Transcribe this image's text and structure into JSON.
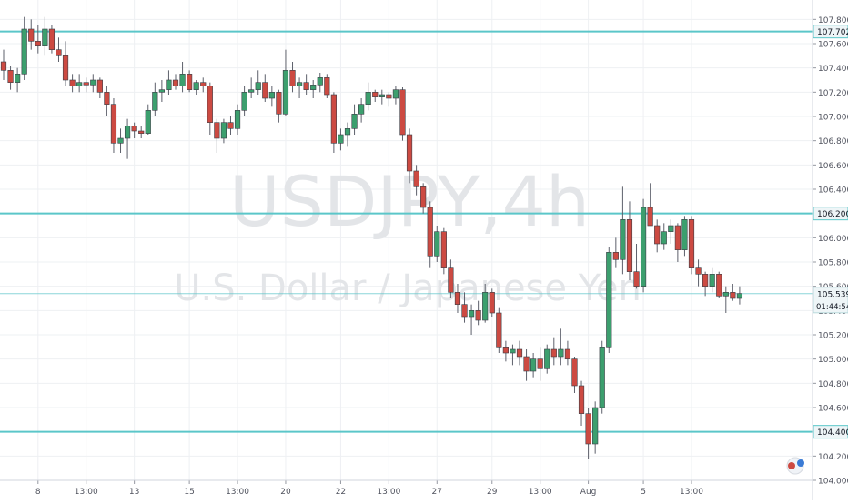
{
  "chart_data": {
    "type": "candlestick",
    "symbol": "USDJPY",
    "interval": "4h",
    "description": "U.S. Dollar / Japanese Yen",
    "colors": {
      "up": "#3c9f6e",
      "down": "#cc4a42",
      "level_line": "#5bc6c9",
      "grid": "#eef0f3",
      "price_tag": "#eef5f7"
    },
    "y_axis": {
      "min": 104.0,
      "max": 107.9,
      "ticks": [
        "104.000",
        "104.200",
        "104.400",
        "104.600",
        "104.800",
        "105.000",
        "105.200",
        "105.400",
        "105.600",
        "105.800",
        "106.000",
        "106.200",
        "106.400",
        "106.600",
        "106.800",
        "107.000",
        "107.200",
        "107.400",
        "107.600",
        "107.800"
      ]
    },
    "x_axis": {
      "ticks": [
        {
          "label": "8",
          "index": 5
        },
        {
          "label": "13:00",
          "index": 12
        },
        {
          "label": "13",
          "index": 19
        },
        {
          "label": "15",
          "index": 27
        },
        {
          "label": "13:00",
          "index": 34
        },
        {
          "label": "20",
          "index": 41
        },
        {
          "label": "22",
          "index": 49
        },
        {
          "label": "13:00",
          "index": 56
        },
        {
          "label": "27",
          "index": 63
        },
        {
          "label": "29",
          "index": 71
        },
        {
          "label": "13:00",
          "index": 78
        },
        {
          "label": "Aug",
          "index": 85
        },
        {
          "label": "5",
          "index": 93
        },
        {
          "label": "13:00",
          "index": 100
        }
      ]
    },
    "horizontal_levels": [
      {
        "value": 107.7,
        "label": "107.702"
      },
      {
        "value": 106.2,
        "label": "106.200"
      },
      {
        "value": 104.4,
        "label": "104.400"
      }
    ],
    "current_price": {
      "value": 105.539,
      "label": "105.539",
      "countdown": "01:44:54"
    },
    "candles": [
      [
        107.45,
        107.55,
        107.3,
        107.38
      ],
      [
        107.38,
        107.42,
        107.22,
        107.28
      ],
      [
        107.28,
        107.4,
        107.2,
        107.35
      ],
      [
        107.35,
        107.82,
        107.3,
        107.72
      ],
      [
        107.72,
        107.8,
        107.55,
        107.62
      ],
      [
        107.62,
        107.75,
        107.52,
        107.58
      ],
      [
        107.58,
        107.82,
        107.5,
        107.72
      ],
      [
        107.72,
        107.75,
        107.52,
        107.55
      ],
      [
        107.55,
        107.65,
        107.45,
        107.5
      ],
      [
        107.5,
        107.62,
        107.25,
        107.3
      ],
      [
        107.3,
        107.35,
        107.2,
        107.25
      ],
      [
        107.25,
        107.35,
        107.2,
        107.28
      ],
      [
        107.28,
        107.32,
        107.2,
        107.26
      ],
      [
        107.26,
        107.35,
        107.2,
        107.3
      ],
      [
        107.3,
        107.32,
        107.15,
        107.2
      ],
      [
        107.2,
        107.25,
        107.0,
        107.1
      ],
      [
        107.1,
        107.15,
        106.7,
        106.78
      ],
      [
        106.78,
        106.9,
        106.7,
        106.82
      ],
      [
        106.82,
        106.98,
        106.65,
        106.92
      ],
      [
        106.92,
        106.95,
        106.82,
        106.88
      ],
      [
        106.88,
        106.92,
        106.82,
        106.86
      ],
      [
        106.86,
        107.1,
        106.85,
        107.05
      ],
      [
        107.05,
        107.28,
        107.0,
        107.2
      ],
      [
        107.2,
        107.3,
        107.12,
        107.22
      ],
      [
        107.22,
        107.38,
        107.18,
        107.3
      ],
      [
        107.3,
        107.35,
        107.22,
        107.25
      ],
      [
        107.25,
        107.45,
        107.2,
        107.35
      ],
      [
        107.35,
        107.38,
        107.2,
        107.22
      ],
      [
        107.22,
        107.3,
        107.18,
        107.28
      ],
      [
        107.28,
        107.32,
        107.2,
        107.25
      ],
      [
        107.25,
        107.28,
        106.85,
        106.95
      ],
      [
        106.95,
        106.98,
        106.7,
        106.82
      ],
      [
        106.82,
        106.98,
        106.78,
        106.95
      ],
      [
        106.95,
        107.0,
        106.85,
        106.9
      ],
      [
        106.9,
        107.1,
        106.85,
        107.05
      ],
      [
        107.05,
        107.25,
        107.0,
        107.2
      ],
      [
        107.2,
        107.32,
        107.15,
        107.22
      ],
      [
        107.22,
        107.38,
        107.18,
        107.28
      ],
      [
        107.28,
        107.35,
        107.12,
        107.15
      ],
      [
        107.15,
        107.25,
        107.08,
        107.2
      ],
      [
        107.2,
        107.22,
        106.95,
        107.02
      ],
      [
        107.02,
        107.55,
        107.0,
        107.38
      ],
      [
        107.38,
        107.45,
        107.2,
        107.25
      ],
      [
        107.25,
        107.32,
        107.15,
        107.28
      ],
      [
        107.28,
        107.35,
        107.18,
        107.22
      ],
      [
        107.22,
        107.3,
        107.15,
        107.26
      ],
      [
        107.26,
        107.36,
        107.2,
        107.32
      ],
      [
        107.32,
        107.35,
        107.15,
        107.18
      ],
      [
        107.18,
        107.2,
        106.7,
        106.78
      ],
      [
        106.78,
        106.9,
        106.72,
        106.85
      ],
      [
        106.85,
        106.95,
        106.75,
        106.9
      ],
      [
        106.9,
        107.1,
        106.85,
        107.02
      ],
      [
        107.02,
        107.15,
        106.95,
        107.1
      ],
      [
        107.1,
        107.28,
        107.05,
        107.2
      ],
      [
        107.2,
        107.22,
        107.12,
        107.16
      ],
      [
        107.16,
        107.22,
        107.1,
        107.18
      ],
      [
        107.18,
        107.2,
        107.08,
        107.15
      ],
      [
        107.15,
        107.25,
        107.1,
        107.22
      ],
      [
        107.22,
        107.24,
        106.8,
        106.85
      ],
      [
        106.85,
        106.9,
        106.45,
        106.55
      ],
      [
        106.55,
        106.6,
        106.35,
        106.42
      ],
      [
        106.42,
        106.45,
        106.2,
        106.25
      ],
      [
        106.25,
        106.3,
        105.75,
        105.85
      ],
      [
        105.85,
        106.1,
        105.8,
        106.05
      ],
      [
        106.05,
        106.08,
        105.7,
        105.75
      ],
      [
        105.75,
        105.82,
        105.5,
        105.55
      ],
      [
        105.55,
        105.62,
        105.38,
        105.45
      ],
      [
        105.45,
        105.55,
        105.3,
        105.35
      ],
      [
        105.35,
        105.45,
        105.2,
        105.4
      ],
      [
        105.4,
        105.48,
        105.28,
        105.32
      ],
      [
        105.32,
        105.62,
        105.3,
        105.55
      ],
      [
        105.55,
        105.58,
        105.35,
        105.38
      ],
      [
        105.38,
        105.42,
        105.05,
        105.1
      ],
      [
        105.1,
        105.15,
        104.98,
        105.05
      ],
      [
        105.05,
        105.12,
        104.95,
        105.08
      ],
      [
        105.08,
        105.15,
        104.95,
        105.02
      ],
      [
        105.02,
        105.08,
        104.82,
        104.9
      ],
      [
        104.9,
        105.05,
        104.85,
        105.0
      ],
      [
        105.0,
        105.1,
        104.82,
        104.92
      ],
      [
        104.92,
        105.12,
        104.88,
        105.08
      ],
      [
        105.08,
        105.18,
        104.95,
        105.02
      ],
      [
        105.02,
        105.25,
        104.95,
        105.08
      ],
      [
        105.08,
        105.15,
        104.95,
        105.0
      ],
      [
        105.0,
        105.02,
        104.72,
        104.78
      ],
      [
        104.78,
        104.82,
        104.45,
        104.55
      ],
      [
        104.55,
        104.6,
        104.18,
        104.3
      ],
      [
        104.3,
        104.65,
        104.22,
        104.6
      ],
      [
        104.6,
        105.15,
        104.55,
        105.1
      ],
      [
        105.1,
        105.92,
        105.05,
        105.88
      ],
      [
        105.88,
        106.0,
        105.75,
        105.82
      ],
      [
        105.82,
        106.42,
        105.7,
        106.15
      ],
      [
        106.15,
        106.3,
        105.65,
        105.72
      ],
      [
        105.72,
        105.95,
        105.58,
        105.6
      ],
      [
        105.6,
        106.32,
        105.55,
        106.25
      ],
      [
        106.25,
        106.45,
        106.1,
        106.1
      ],
      [
        106.1,
        106.15,
        105.88,
        105.95
      ],
      [
        105.95,
        106.12,
        105.9,
        106.05
      ],
      [
        106.05,
        106.15,
        105.95,
        106.1
      ],
      [
        106.1,
        106.12,
        105.8,
        105.9
      ],
      [
        105.9,
        106.18,
        105.85,
        106.15
      ],
      [
        106.15,
        106.18,
        105.7,
        105.75
      ],
      [
        105.75,
        105.82,
        105.6,
        105.7
      ],
      [
        105.7,
        105.72,
        105.52,
        105.6
      ],
      [
        105.6,
        105.75,
        105.55,
        105.7
      ],
      [
        105.7,
        105.72,
        105.5,
        105.52
      ],
      [
        105.52,
        105.6,
        105.38,
        105.55
      ],
      [
        105.55,
        105.62,
        105.48,
        105.5
      ],
      [
        105.5,
        105.6,
        105.45,
        105.54
      ]
    ]
  }
}
